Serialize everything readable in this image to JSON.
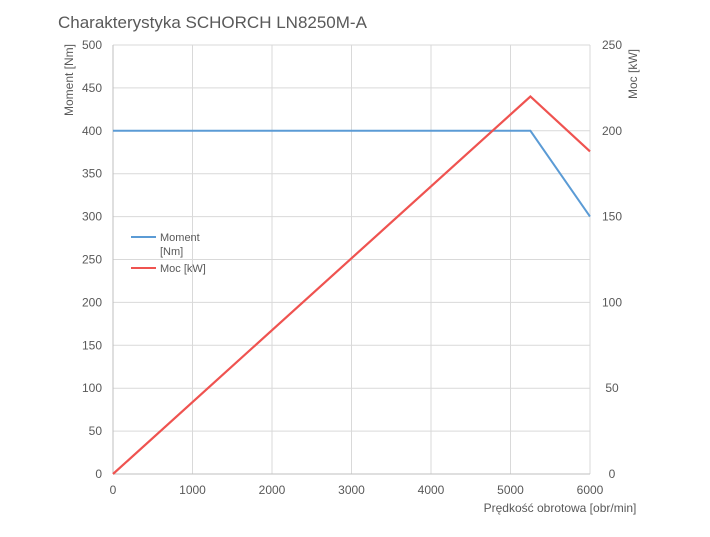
{
  "chart_data": {
    "type": "line",
    "title": "Charakterystyka SCHORCH LN8250M-A",
    "xlabel": "Prędkość obrotowa [obr/min]",
    "ylabel": "Moment [Nm]",
    "y2label": "Moc [kW]",
    "xlim": [
      0,
      6000
    ],
    "ylim": [
      0,
      500
    ],
    "y2lim": [
      0,
      250
    ],
    "xticks": [
      0,
      1000,
      2000,
      3000,
      4000,
      5000,
      6000
    ],
    "yticks": [
      0,
      50,
      100,
      150,
      200,
      250,
      300,
      350,
      400,
      450,
      500
    ],
    "y2ticks": [
      0,
      50,
      100,
      150,
      200,
      250
    ],
    "grid": true,
    "legend_position": "left-middle",
    "series": [
      {
        "name": "Moment [Nm]",
        "legend_lines": [
          "Moment",
          "[Nm]"
        ],
        "axis": "left",
        "color": "#5B9BD5",
        "points": [
          [
            0,
            400
          ],
          [
            5250,
            400
          ],
          [
            6000,
            300
          ]
        ]
      },
      {
        "name": "Moc [kW]",
        "legend_lines": [
          "Moc [kW]"
        ],
        "axis": "right",
        "color": "#EF5350",
        "points": [
          [
            0,
            0
          ],
          [
            5250,
            220
          ],
          [
            6000,
            188
          ]
        ]
      }
    ]
  }
}
